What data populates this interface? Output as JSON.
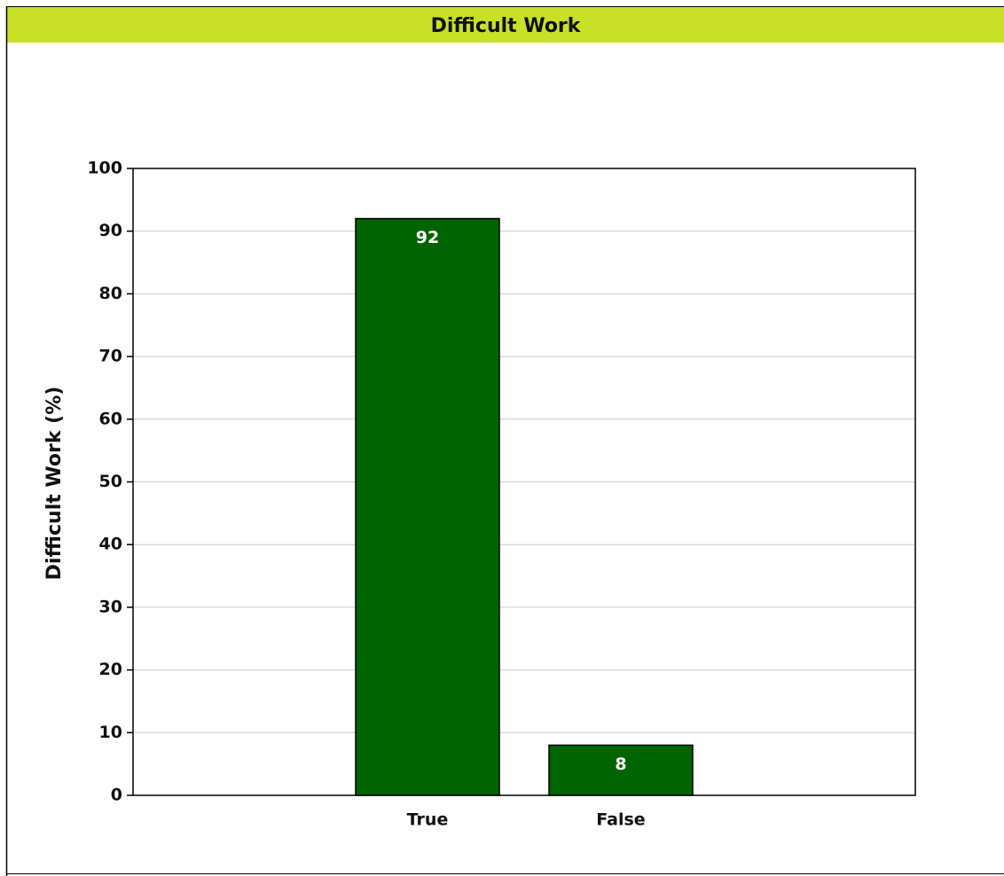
{
  "chart_data": {
    "type": "bar",
    "title": "Difficult Work",
    "y_label": "Difficult Work  (%)",
    "categories": [
      "True",
      "False"
    ],
    "values": [
      92,
      8
    ],
    "color": "#006400",
    "ylim": [
      0,
      100
    ],
    "yticks": [
      0,
      10,
      20,
      30,
      40,
      50,
      60,
      70,
      80,
      90,
      100
    ],
    "grid": true
  }
}
